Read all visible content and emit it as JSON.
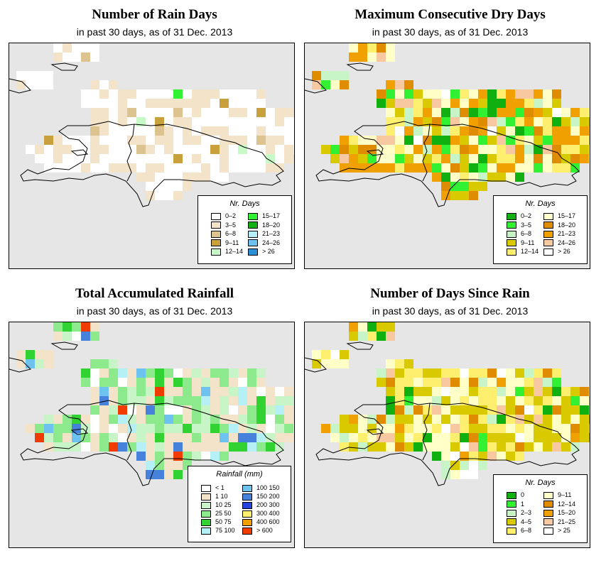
{
  "colors": {
    "background": "#e6e6e6",
    "rain_days": [
      "#ffffff",
      "#f3e3c8",
      "#dcc390",
      "#c8a03c",
      "#c8fac8",
      "#32f032",
      "#10b010",
      "#b4f0f5",
      "#6ec2f0",
      "#2a8fd4"
    ],
    "dry_days": [
      "#10b010",
      "#32f032",
      "#c8f5c8",
      "#d9ca00",
      "#ffef6e",
      "#ffffc8",
      "#e08c00",
      "#f0a000",
      "#f8c8a0",
      "#ffffff"
    ],
    "rainfall": [
      "#ffffff",
      "#f3e3c8",
      "#c8f5c8",
      "#8cea8c",
      "#32d232",
      "#b4f0f5",
      "#6ec2f0",
      "#4682dc",
      "#2244dc",
      "#ffef6e",
      "#f0a000",
      "#f03c00"
    ],
    "since_rain": [
      "#10b010",
      "#32f032",
      "#c8f5c8",
      "#d9ca00",
      "#ffef6e",
      "#ffffc8",
      "#e08c00",
      "#f0a000",
      "#f8c8a0",
      "#ffffff"
    ]
  },
  "panels": [
    {
      "title": "Number of Rain Days",
      "subtitle": "in past 30 days, as of  31 Dec. 2013",
      "legend_title": "Nr. Days",
      "legend": [
        "0–2",
        "3–5",
        "6–8",
        "9–11",
        "12–14",
        "15–17",
        "18–20",
        "21–23",
        "24–26",
        "> 26"
      ]
    },
    {
      "title": "Maximum Consecutive Dry Days",
      "subtitle": "in past 30 days, as of  31 Dec. 2013",
      "legend_title": "Nr. Days",
      "legend": [
        "0–2",
        "3–5",
        "6–8",
        "9–11",
        "12–14",
        "15–17",
        "18–20",
        "21–23",
        "24–26",
        "> 26"
      ]
    },
    {
      "title": "Total Accumulated Rainfall",
      "subtitle": "in past 30 days, as of  31 Dec. 2013",
      "legend_title": "Rainfall (mm)",
      "legend": [
        "< 1",
        "1   10",
        "10   25",
        "25   50",
        "50   75",
        "75   100",
        "100  150",
        "150  200",
        "200  300",
        "300  400",
        "400  600",
        "> 600"
      ]
    },
    {
      "title": "Number of Days Since Rain",
      "subtitle": "in past 30 days, as of  31 Dec. 2013",
      "legend_title": "Nr. Days",
      "legend": [
        "0",
        "1",
        "2–3",
        "4–5",
        "6–8",
        "9–11",
        "12–14",
        "15–20",
        "21–25",
        "> 25"
      ]
    }
  ]
}
